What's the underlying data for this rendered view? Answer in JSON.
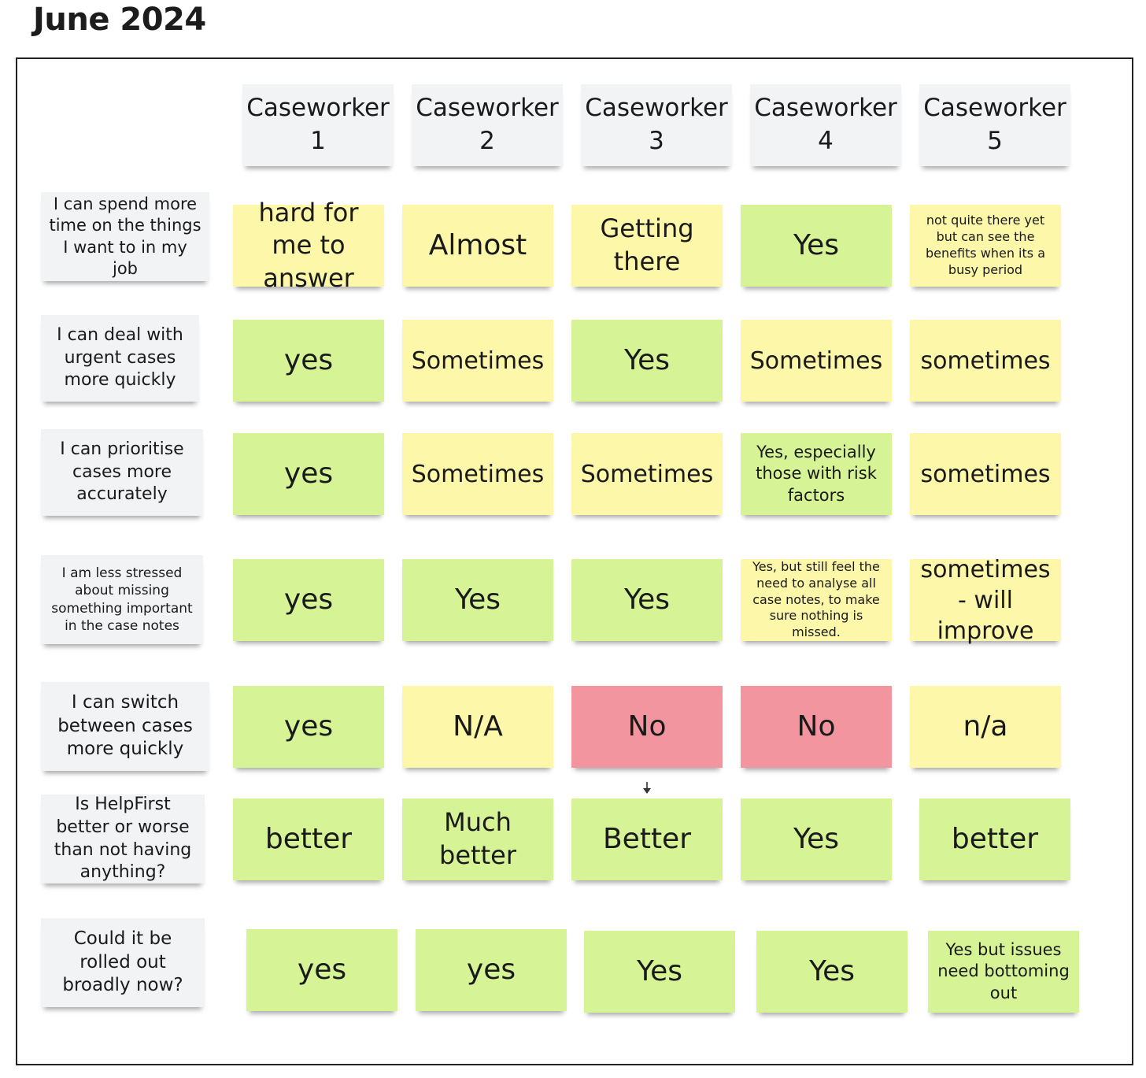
{
  "title": "June 2024",
  "headers": [
    {
      "line1": "Caseworker",
      "line2": "1"
    },
    {
      "line1": "Caseworker",
      "line2": "2"
    },
    {
      "line1": "Caseworker",
      "line2": "3"
    },
    {
      "line1": "Caseworker",
      "line2": "4"
    },
    {
      "line1": "Caseworker",
      "line2": "5"
    }
  ],
  "rows": [
    {
      "question": "I can spend more time on the things I want to in my job",
      "answers": [
        {
          "text": "hard for me to answer",
          "color": "yellow"
        },
        {
          "text": "Almost",
          "color": "yellow"
        },
        {
          "text": "Getting there",
          "color": "yellow"
        },
        {
          "text": "Yes",
          "color": "green"
        },
        {
          "text": "not quite there yet but can see the benefits when its a busy period",
          "color": "yellow"
        }
      ]
    },
    {
      "question": "I can deal with urgent cases more quickly",
      "answers": [
        {
          "text": "yes",
          "color": "green"
        },
        {
          "text": "Sometimes",
          "color": "yellow"
        },
        {
          "text": "Yes",
          "color": "green"
        },
        {
          "text": "Sometimes",
          "color": "yellow"
        },
        {
          "text": "sometimes",
          "color": "yellow"
        }
      ]
    },
    {
      "question": "I can prioritise cases more accurately",
      "answers": [
        {
          "text": "yes",
          "color": "green"
        },
        {
          "text": "Sometimes",
          "color": "yellow"
        },
        {
          "text": "Sometimes",
          "color": "yellow"
        },
        {
          "text": "Yes, especially those with risk factors",
          "color": "green"
        },
        {
          "text": "sometimes",
          "color": "yellow"
        }
      ]
    },
    {
      "question": "I am less stressed about missing something important in the case notes",
      "answers": [
        {
          "text": "yes",
          "color": "green"
        },
        {
          "text": "Yes",
          "color": "green"
        },
        {
          "text": "Yes",
          "color": "green"
        },
        {
          "text": "Yes, but still feel the need to analyse all case notes, to make sure nothing is missed.",
          "color": "yellow"
        },
        {
          "text": "sometimes - will improve",
          "color": "yellow"
        }
      ]
    },
    {
      "question": "I can switch between cases more quickly",
      "answers": [
        {
          "text": "yes",
          "color": "green"
        },
        {
          "text": "N/A",
          "color": "yellow"
        },
        {
          "text": "No",
          "color": "red"
        },
        {
          "text": "No",
          "color": "red"
        },
        {
          "text": "n/a",
          "color": "yellow"
        }
      ]
    },
    {
      "question": "Is HelpFirst better or worse than not having anything?",
      "answers": [
        {
          "text": "better",
          "color": "green"
        },
        {
          "text": "Much better",
          "color": "green"
        },
        {
          "text": "Better",
          "color": "green"
        },
        {
          "text": "Yes",
          "color": "green"
        },
        {
          "text": "better",
          "color": "green"
        }
      ]
    },
    {
      "question": "Could it be rolled out broadly now?",
      "answers": [
        {
          "text": "yes",
          "color": "green"
        },
        {
          "text": "yes",
          "color": "green"
        },
        {
          "text": "Yes",
          "color": "green"
        },
        {
          "text": "Yes",
          "color": "green"
        },
        {
          "text": "Yes but issues need bottoming out",
          "color": "green"
        }
      ]
    }
  ],
  "colors": {
    "yellow": "#fdf7a9",
    "green": "#d6f396",
    "red": "#f2959e",
    "grey": "#f2f3f5"
  },
  "icons": {
    "connector": "arrow-down-icon"
  }
}
